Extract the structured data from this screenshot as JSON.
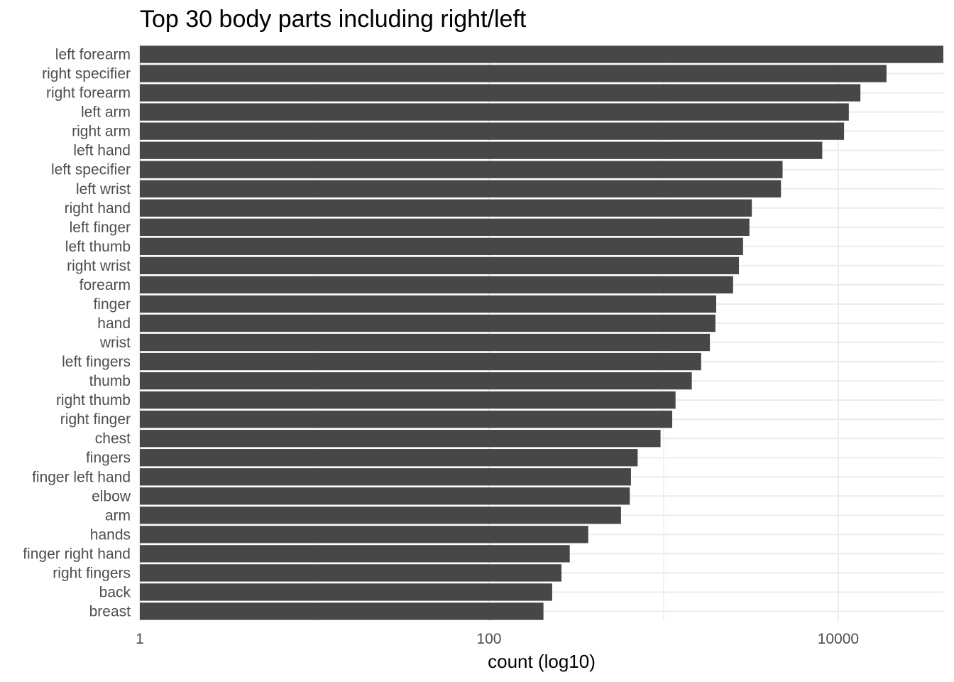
{
  "chart_data": {
    "type": "bar",
    "orientation": "horizontal",
    "title": "Top 30 body parts including right/left",
    "xlabel": "count (log10)",
    "ylabel": "",
    "x_scale": "log10",
    "xlim": [
      1,
      40000
    ],
    "x_ticks": [
      1,
      100,
      10000
    ],
    "x_tick_labels": [
      "1",
      "100",
      "10000"
    ],
    "grid": true,
    "bar_color": "#474747",
    "categories": [
      "left forearm",
      "right specifier",
      "right forearm",
      "left arm",
      "right arm",
      "left hand",
      "left specifier",
      "left wrist",
      "right hand",
      "left finger",
      "left thumb",
      "right wrist",
      "forearm",
      "finger",
      "hand",
      "wrist",
      "left fingers",
      "thumb",
      "right thumb",
      "right finger",
      "chest",
      "fingers",
      "finger left hand",
      "elbow",
      "arm",
      "hands",
      "finger right hand",
      "right fingers",
      "back",
      "breast"
    ],
    "values": [
      40000,
      18900,
      13400,
      11500,
      10800,
      8100,
      4800,
      4700,
      3200,
      3100,
      2850,
      2700,
      2500,
      2000,
      1980,
      1840,
      1640,
      1450,
      1170,
      1120,
      960,
      710,
      650,
      640,
      570,
      370,
      290,
      260,
      230,
      205
    ]
  }
}
